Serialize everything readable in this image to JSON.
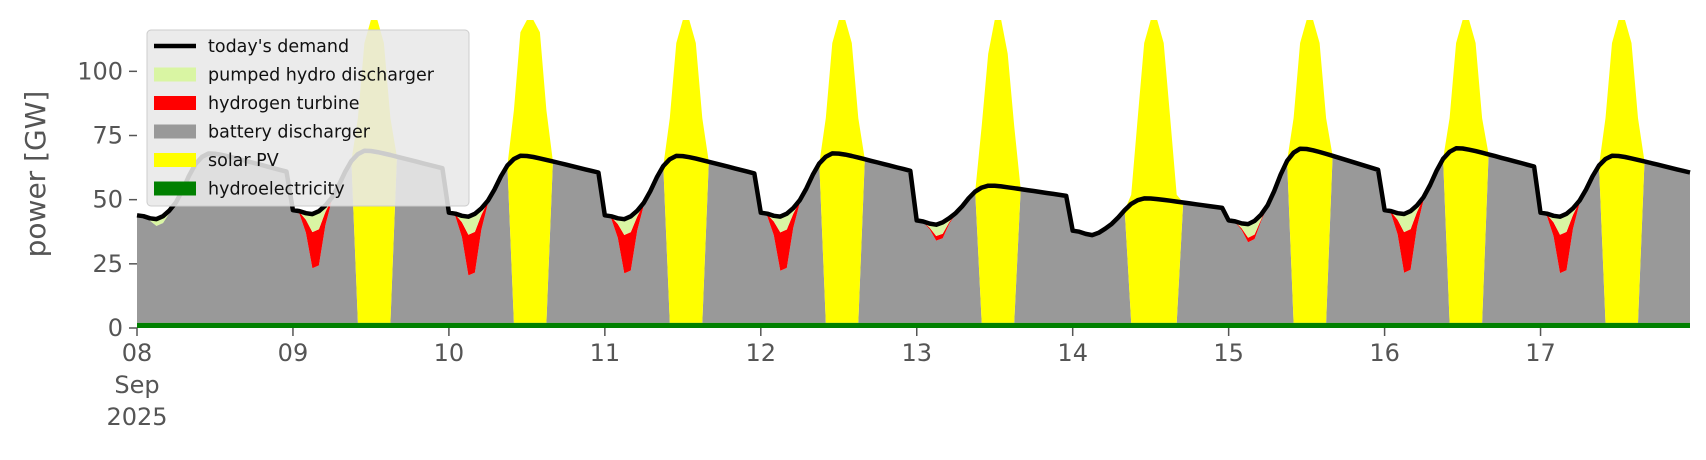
{
  "chart_data": {
    "type": "area",
    "ylabel": "power [GW]",
    "xlabel": "",
    "ylim": [
      0,
      120
    ],
    "xlim": [
      0,
      239
    ],
    "y_ticks": [
      0,
      25,
      50,
      75,
      100
    ],
    "x_ticks": [
      {
        "h": 0,
        "lines": [
          "08",
          "Sep",
          "2025"
        ]
      },
      {
        "h": 24,
        "lines": [
          "09"
        ]
      },
      {
        "h": 48,
        "lines": [
          "10"
        ]
      },
      {
        "h": 72,
        "lines": [
          "11"
        ]
      },
      {
        "h": 96,
        "lines": [
          "12"
        ]
      },
      {
        "h": 120,
        "lines": [
          "13"
        ]
      },
      {
        "h": 144,
        "lines": [
          "14"
        ]
      },
      {
        "h": 168,
        "lines": [
          "15"
        ]
      },
      {
        "h": 192,
        "lines": [
          "16"
        ]
      },
      {
        "h": 216,
        "lines": [
          "17"
        ]
      }
    ],
    "grid": false,
    "legend": "top-left",
    "legend_entries": [
      {
        "label": "today's demand",
        "color": "#000000",
        "kind": "line"
      },
      {
        "label": "pumped hydro discharger",
        "color": "#d9f5a3",
        "kind": "patch"
      },
      {
        "label": "hydrogen turbine",
        "color": "#ff0000",
        "kind": "patch"
      },
      {
        "label": "battery discharger",
        "color": "#999999",
        "kind": "patch"
      },
      {
        "label": "solar PV",
        "color": "#ffff00",
        "kind": "patch"
      },
      {
        "label": "hydroelectricity",
        "color": "#008000",
        "kind": "patch"
      }
    ],
    "days": [
      {
        "peak": 69,
        "trough": 44,
        "min_h": 3,
        "solar_peak": 66,
        "hydrogen": 0,
        "pumped": 3
      },
      {
        "peak": 70,
        "trough": 46,
        "min_h": 3,
        "solar_peak": 130,
        "hydrogen": 16,
        "pumped": 8
      },
      {
        "peak": 68,
        "trough": 45,
        "min_h": 3,
        "solar_peak": 135,
        "hydrogen": 18,
        "pumped": 8
      },
      {
        "peak": 68,
        "trough": 44,
        "min_h": 3,
        "solar_peak": 130,
        "hydrogen": 17,
        "pumped": 7
      },
      {
        "peak": 69,
        "trough": 45,
        "min_h": 3,
        "solar_peak": 130,
        "hydrogen": 17,
        "pumped": 7
      },
      {
        "peak": 56,
        "trough": 42,
        "min_h": 3,
        "solar_peak": 125,
        "hydrogen": 2,
        "pumped": 5
      },
      {
        "peak": 51,
        "trough": 38,
        "min_h": 5,
        "solar_peak": 130,
        "hydrogen": 0,
        "pumped": 0
      },
      {
        "peak": 71,
        "trough": 42,
        "min_h": 3,
        "solar_peak": 130,
        "hydrogen": 2,
        "pumped": 6
      },
      {
        "peak": 71,
        "trough": 46,
        "min_h": 3,
        "solar_peak": 130,
        "hydrogen": 18,
        "pumped": 8
      },
      {
        "peak": 68,
        "trough": 45,
        "min_h": 3,
        "solar_peak": 130,
        "hydrogen": 17,
        "pumped": 8
      }
    ],
    "hydroelectricity_level": 2,
    "series": [
      {
        "name": "today's demand",
        "kind": "line"
      },
      {
        "name": "pumped hydro discharger",
        "kind": "area"
      },
      {
        "name": "hydrogen turbine",
        "kind": "area"
      },
      {
        "name": "battery discharger",
        "kind": "area"
      },
      {
        "name": "solar PV",
        "kind": "area"
      },
      {
        "name": "hydroelectricity",
        "kind": "area"
      }
    ]
  }
}
